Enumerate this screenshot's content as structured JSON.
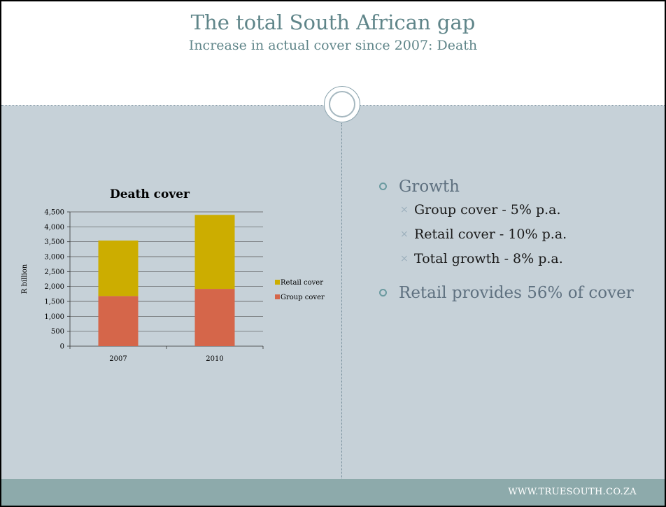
{
  "slide": {
    "title": "The total South African gap",
    "subtitle": "Increase in actual cover since 2007: Death",
    "footer": "WWW.TRUESOUTH.CO.ZA"
  },
  "bullets": [
    {
      "text": "Growth",
      "sub": [
        "Group cover - 5% p.a.",
        "Retail cover - 10% p.a.",
        "Total growth - 8% p.a."
      ]
    },
    {
      "text": "Retail provides 56% of cover",
      "sub": []
    }
  ],
  "colors": {
    "background": "#c6d1d8",
    "title": "#5f8589",
    "footer_band": "#8daaab",
    "retail": "#ccad00",
    "group": "#d5664a"
  },
  "icons": {
    "sub_bullet": "×"
  },
  "chart_data": {
    "type": "bar",
    "stacked": true,
    "title": "Death cover",
    "xlabel": "",
    "ylabel": "R billion",
    "categories": [
      "2007",
      "2010"
    ],
    "series": [
      {
        "name": "Group cover",
        "values": [
          1680,
          1920
        ],
        "color": "#d5664a"
      },
      {
        "name": "Retail cover",
        "values": [
          1860,
          2480
        ],
        "color": "#ccad00"
      }
    ],
    "ylim": [
      0,
      4500
    ],
    "yticks": [
      "0",
      "500",
      "1,000",
      "1,500",
      "2,000",
      "2,500",
      "3,000",
      "3,500",
      "4,000",
      "4,500"
    ],
    "grid": true,
    "legend": "right"
  }
}
